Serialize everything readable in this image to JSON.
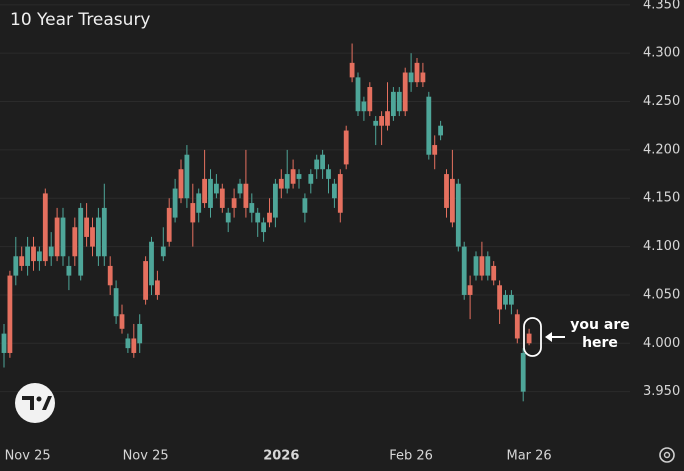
{
  "chart_data": {
    "type": "candlestick",
    "title": "10 Year Treasury",
    "annotation": [
      "you are",
      "here"
    ],
    "categories": [
      null,
      null,
      null,
      null,
      "Nov 25",
      null,
      null,
      null,
      null,
      null,
      null,
      null,
      null,
      null,
      null,
      null,
      null,
      null,
      null,
      null,
      null,
      null,
      null,
      null,
      "Nov 25",
      null,
      null,
      null,
      null,
      null,
      null,
      null,
      null,
      null,
      null,
      null,
      null,
      null,
      null,
      null,
      null,
      null,
      null,
      null,
      null,
      null,
      null,
      "2026",
      null,
      null,
      null,
      null,
      null,
      null,
      null,
      null,
      null,
      null,
      null,
      null,
      null,
      null,
      null,
      null,
      null,
      null,
      null,
      null,
      null,
      "Feb 26",
      null,
      null,
      null,
      null,
      null,
      null,
      null,
      null,
      null,
      null,
      null,
      null,
      null,
      null,
      null,
      null,
      null,
      null,
      null,
      "Mar 26"
    ],
    "open": [
      3.99,
      4.07,
      4.07,
      4.09,
      4.08,
      4.1,
      4.085,
      4.155,
      4.09,
      4.13,
      4.09,
      4.07,
      4.12,
      4.07,
      4.13,
      4.12,
      4.09,
      4.09,
      4.08,
      4.028,
      4.03,
      3.995,
      4.005,
      4.0,
      4.085,
      4.06,
      4.065,
      4.09,
      4.14,
      4.13,
      4.18,
      4.15,
      4.145,
      4.135,
      4.17,
      4.14,
      4.155,
      4.16,
      4.125,
      4.15,
      4.155,
      4.165,
      4.135,
      4.125,
      4.115,
      4.135,
      4.13,
      4.17,
      4.16,
      4.18,
      4.17,
      4.135,
      4.165,
      4.18,
      4.18,
      4.17,
      4.15,
      4.175,
      4.22,
      4.29,
      4.24,
      4.24,
      4.265,
      4.225,
      4.235,
      4.24,
      4.235,
      4.24,
      4.28,
      4.27,
      4.29,
      4.28,
      4.195,
      4.205,
      4.215,
      4.175,
      4.17,
      4.1,
      4.05,
      4.06,
      4.07,
      4.09,
      4.07,
      4.08,
      4.06,
      4.04,
      4.04,
      4.03,
      3.95,
      4.01
    ],
    "high": [
      4.02,
      4.075,
      4.11,
      4.1,
      4.11,
      4.11,
      4.1,
      4.16,
      4.115,
      4.14,
      4.14,
      4.09,
      4.13,
      4.145,
      4.145,
      4.13,
      4.14,
      4.165,
      4.09,
      4.065,
      4.04,
      4.01,
      4.02,
      4.03,
      4.09,
      4.11,
      4.075,
      4.12,
      4.15,
      4.17,
      4.19,
      4.205,
      4.165,
      4.16,
      4.2,
      4.18,
      4.175,
      4.165,
      4.14,
      4.16,
      4.17,
      4.2,
      4.155,
      4.14,
      4.13,
      4.15,
      4.17,
      4.18,
      4.2,
      4.19,
      4.18,
      4.155,
      4.18,
      4.195,
      4.2,
      4.185,
      4.17,
      4.18,
      4.225,
      4.31,
      4.28,
      4.255,
      4.27,
      4.235,
      4.24,
      4.27,
      4.265,
      4.265,
      4.285,
      4.3,
      4.295,
      4.29,
      4.26,
      4.215,
      4.23,
      4.18,
      4.2,
      4.17,
      4.105,
      4.07,
      4.095,
      4.105,
      4.095,
      4.085,
      4.065,
      4.055,
      4.055,
      4.035,
      3.995,
      4.015
    ],
    "low": [
      3.975,
      3.985,
      4.06,
      4.075,
      4.07,
      4.075,
      4.075,
      4.08,
      4.08,
      4.085,
      4.08,
      4.055,
      4.08,
      4.065,
      4.1,
      4.09,
      4.08,
      4.08,
      4.05,
      4.02,
      4.01,
      3.99,
      3.985,
      3.99,
      4.04,
      4.05,
      4.045,
      4.085,
      4.1,
      4.125,
      4.145,
      4.14,
      4.1,
      4.125,
      4.14,
      4.13,
      4.15,
      4.135,
      4.115,
      4.13,
      4.15,
      4.13,
      4.125,
      4.11,
      4.105,
      4.12,
      4.12,
      4.15,
      4.155,
      4.16,
      4.16,
      4.125,
      4.155,
      4.17,
      4.17,
      4.155,
      4.14,
      4.125,
      4.18,
      4.27,
      4.235,
      4.23,
      4.235,
      4.205,
      4.205,
      4.22,
      4.23,
      4.235,
      4.235,
      4.26,
      4.265,
      4.265,
      4.19,
      4.18,
      4.21,
      4.13,
      4.12,
      4.095,
      4.045,
      4.025,
      4.065,
      4.065,
      4.065,
      4.06,
      4.02,
      4.035,
      4.03,
      4.0,
      3.94,
      3.998
    ],
    "close": [
      4.01,
      3.99,
      4.09,
      4.08,
      4.1,
      4.085,
      4.095,
      4.085,
      4.1,
      4.09,
      4.13,
      4.08,
      4.09,
      4.14,
      4.11,
      4.1,
      4.13,
      4.14,
      4.06,
      4.057,
      4.015,
      4.005,
      3.99,
      4.02,
      4.045,
      4.105,
      4.05,
      4.1,
      4.105,
      4.16,
      4.15,
      4.195,
      4.125,
      4.155,
      4.145,
      4.17,
      4.165,
      4.14,
      4.135,
      4.14,
      4.165,
      4.14,
      4.145,
      4.135,
      4.125,
      4.125,
      4.165,
      4.16,
      4.175,
      4.165,
      4.175,
      4.15,
      4.175,
      4.19,
      4.195,
      4.18,
      4.165,
      4.135,
      4.185,
      4.275,
      4.275,
      4.25,
      4.24,
      4.23,
      4.225,
      4.225,
      4.26,
      4.26,
      4.24,
      4.28,
      4.27,
      4.27,
      4.255,
      4.195,
      4.225,
      4.14,
      4.125,
      4.165,
      4.1,
      4.05,
      4.09,
      4.07,
      4.09,
      4.065,
      4.035,
      4.05,
      4.05,
      4.005,
      3.99,
      4.0
    ],
    "up_color": "#4ea699",
    "down_color": "#e5705f",
    "ylim": [
      3.9,
      4.355
    ],
    "yticks": [
      {
        "value": 3.95,
        "label": "3.950"
      },
      {
        "value": 4.0,
        "label": "4.000"
      },
      {
        "value": 4.05,
        "label": "4.050"
      },
      {
        "value": 4.1,
        "label": "4.100"
      },
      {
        "value": 4.15,
        "label": "4.150"
      },
      {
        "value": 4.2,
        "label": "4.200"
      },
      {
        "value": 4.25,
        "label": "4.250"
      },
      {
        "value": 4.3,
        "label": "4.300"
      },
      {
        "value": 4.35,
        "label": "4.350"
      }
    ],
    "grid": true
  }
}
